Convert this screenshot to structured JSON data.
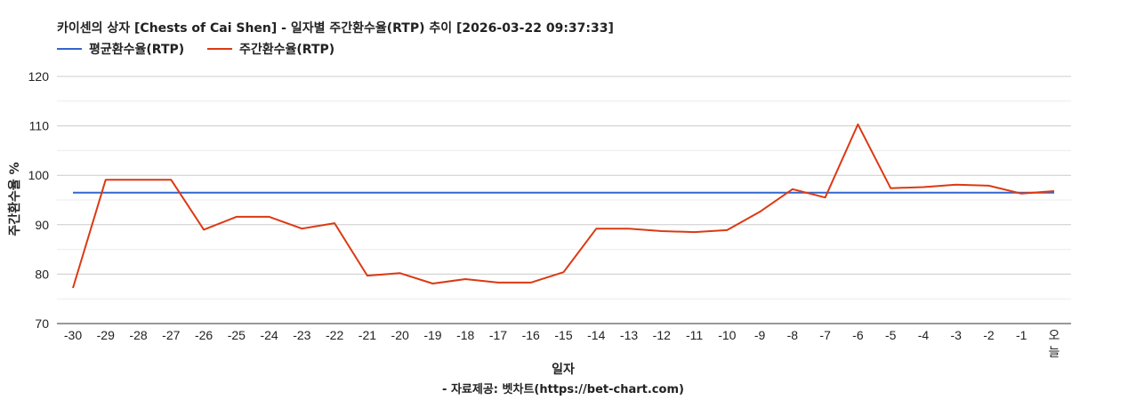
{
  "chart_data": {
    "type": "line",
    "title": "카이센의 상자 [Chests of Cai Shen] - 일자별 주간환수율(RTP) 추이 [2026-03-22 09:37:33]",
    "xlabel": "일자",
    "ylabel": "주간환수율 %",
    "source": "- 자료제공: 벳차트(https://bet-chart.com)",
    "ylim": [
      70,
      120
    ],
    "yticks": [
      70,
      80,
      90,
      100,
      110,
      120
    ],
    "grid": true,
    "legend_position": "top-left",
    "categories": [
      "-30",
      "-29",
      "-28",
      "-27",
      "-26",
      "-25",
      "-24",
      "-23",
      "-22",
      "-21",
      "-20",
      "-19",
      "-18",
      "-17",
      "-16",
      "-15",
      "-14",
      "-13",
      "-12",
      "-11",
      "-10",
      "-9",
      "-8",
      "-7",
      "-6",
      "-5",
      "-4",
      "-3",
      "-2",
      "-1",
      "오늘"
    ],
    "series": [
      {
        "name": "평균환수율(RTP)",
        "color": "#3366cc",
        "values": [
          96.5,
          96.5,
          96.5,
          96.5,
          96.5,
          96.5,
          96.5,
          96.5,
          96.5,
          96.5,
          96.5,
          96.5,
          96.5,
          96.5,
          96.5,
          96.5,
          96.5,
          96.5,
          96.5,
          96.5,
          96.5,
          96.5,
          96.5,
          96.5,
          96.5,
          96.5,
          96.5,
          96.5,
          96.5,
          96.5,
          96.5
        ]
      },
      {
        "name": "주간환수율(RTP)",
        "color": "#dc3912",
        "values": [
          77.2,
          99.1,
          99.1,
          99.1,
          89.0,
          91.6,
          91.6,
          89.2,
          90.3,
          79.7,
          80.2,
          78.1,
          79.0,
          78.3,
          78.3,
          80.4,
          89.2,
          89.2,
          88.7,
          88.5,
          88.9,
          92.6,
          97.2,
          95.5,
          110.3,
          97.4,
          97.6,
          98.1,
          97.9,
          96.3,
          96.8
        ]
      }
    ]
  }
}
